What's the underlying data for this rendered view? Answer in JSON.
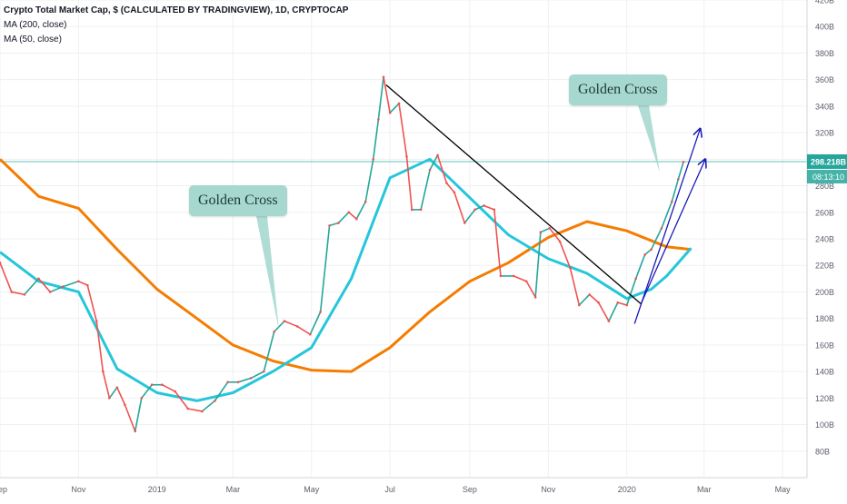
{
  "legend": {
    "title": "Crypto Total Market Cap, $ (CALCULATED BY TRADINGVIEW), 1D, CRYPTOCAP",
    "ma200": "MA (200, close)",
    "ma50": "MA (50, close)"
  },
  "price_badge": {
    "value": "298.218B",
    "countdown": "08:13:10",
    "color": "#26a69a"
  },
  "annotations": {
    "callout_1": "Golden Cross",
    "callout_2": "Golden Cross"
  },
  "colors": {
    "candle_up": "#26a69a",
    "candle_down": "#ef5350",
    "ma200": "#f57c00",
    "ma50": "#26c6da",
    "trendline": "#000000",
    "channel": "#1a1ab8",
    "callout_bg": "#a6d8cf"
  },
  "chart_data": {
    "type": "line",
    "title": "Crypto Total Market Cap, $ (CALCULATED BY TRADINGVIEW), 1D, CRYPTOCAP",
    "ylim": [
      60,
      420
    ],
    "xlim": [
      "2018-09-01",
      "2020-05-20"
    ],
    "y_ticks": [
      "80B",
      "100B",
      "120B",
      "140B",
      "160B",
      "180B",
      "200B",
      "220B",
      "240B",
      "260B",
      "280B",
      "300B",
      "320B",
      "340B",
      "360B",
      "380B",
      "400B",
      "420B"
    ],
    "x_ticks": [
      {
        "date": "2018-09-01",
        "label": "Sep"
      },
      {
        "date": "2018-11-01",
        "label": "Nov"
      },
      {
        "date": "2019-01-01",
        "label": "2019"
      },
      {
        "date": "2019-03-01",
        "label": "Mar"
      },
      {
        "date": "2019-05-01",
        "label": "May"
      },
      {
        "date": "2019-07-01",
        "label": "Jul"
      },
      {
        "date": "2019-09-01",
        "label": "Sep"
      },
      {
        "date": "2019-11-01",
        "label": "Nov"
      },
      {
        "date": "2020-01-01",
        "label": "2020"
      },
      {
        "date": "2020-03-01",
        "label": "Mar"
      },
      {
        "date": "2020-05-01",
        "label": "May"
      }
    ],
    "last_price": 298.2,
    "series": [
      {
        "name": "Crypto Total Market Cap",
        "points": [
          [
            "2018-09-01",
            222
          ],
          [
            "2018-09-10",
            200
          ],
          [
            "2018-09-20",
            198
          ],
          [
            "2018-10-01",
            210
          ],
          [
            "2018-10-10",
            200
          ],
          [
            "2018-10-20",
            204
          ],
          [
            "2018-11-01",
            208
          ],
          [
            "2018-11-08",
            205
          ],
          [
            "2018-11-15",
            178
          ],
          [
            "2018-11-20",
            140
          ],
          [
            "2018-11-25",
            120
          ],
          [
            "2018-12-01",
            128
          ],
          [
            "2018-12-07",
            115
          ],
          [
            "2018-12-15",
            95
          ],
          [
            "2018-12-20",
            120
          ],
          [
            "2018-12-28",
            130
          ],
          [
            "2019-01-05",
            130
          ],
          [
            "2019-01-15",
            125
          ],
          [
            "2019-01-25",
            112
          ],
          [
            "2019-02-05",
            110
          ],
          [
            "2019-02-15",
            118
          ],
          [
            "2019-02-25",
            132
          ],
          [
            "2019-03-05",
            132
          ],
          [
            "2019-03-15",
            135
          ],
          [
            "2019-03-25",
            140
          ],
          [
            "2019-04-02",
            170
          ],
          [
            "2019-04-10",
            178
          ],
          [
            "2019-04-20",
            174
          ],
          [
            "2019-04-30",
            168
          ],
          [
            "2019-05-08",
            185
          ],
          [
            "2019-05-15",
            250
          ],
          [
            "2019-05-22",
            252
          ],
          [
            "2019-05-30",
            260
          ],
          [
            "2019-06-05",
            255
          ],
          [
            "2019-06-12",
            268
          ],
          [
            "2019-06-18",
            300
          ],
          [
            "2019-06-22",
            330
          ],
          [
            "2019-06-26",
            362
          ],
          [
            "2019-07-01",
            335
          ],
          [
            "2019-07-08",
            342
          ],
          [
            "2019-07-14",
            302
          ],
          [
            "2019-07-18",
            262
          ],
          [
            "2019-07-25",
            262
          ],
          [
            "2019-08-01",
            292
          ],
          [
            "2019-08-07",
            303
          ],
          [
            "2019-08-14",
            282
          ],
          [
            "2019-08-20",
            275
          ],
          [
            "2019-08-28",
            252
          ],
          [
            "2019-09-05",
            262
          ],
          [
            "2019-09-12",
            265
          ],
          [
            "2019-09-20",
            262
          ],
          [
            "2019-09-25",
            212
          ],
          [
            "2019-10-05",
            212
          ],
          [
            "2019-10-15",
            208
          ],
          [
            "2019-10-22",
            196
          ],
          [
            "2019-10-26",
            245
          ],
          [
            "2019-11-02",
            248
          ],
          [
            "2019-11-10",
            238
          ],
          [
            "2019-11-18",
            218
          ],
          [
            "2019-11-25",
            190
          ],
          [
            "2019-12-03",
            198
          ],
          [
            "2019-12-10",
            192
          ],
          [
            "2019-12-18",
            178
          ],
          [
            "2019-12-25",
            192
          ],
          [
            "2020-01-01",
            190
          ],
          [
            "2020-01-08",
            210
          ],
          [
            "2020-01-15",
            228
          ],
          [
            "2020-01-20",
            232
          ],
          [
            "2020-01-28",
            248
          ],
          [
            "2020-02-05",
            268
          ],
          [
            "2020-02-10",
            285
          ],
          [
            "2020-02-14",
            298
          ]
        ]
      },
      {
        "name": "MA (200, close)",
        "points": [
          [
            "2018-09-01",
            300
          ],
          [
            "2018-10-01",
            272
          ],
          [
            "2018-11-01",
            263
          ],
          [
            "2018-12-01",
            232
          ],
          [
            "2019-01-01",
            202
          ],
          [
            "2019-02-01",
            180
          ],
          [
            "2019-03-01",
            160
          ],
          [
            "2019-04-01",
            148
          ],
          [
            "2019-05-01",
            141
          ],
          [
            "2019-06-01",
            140
          ],
          [
            "2019-07-01",
            158
          ],
          [
            "2019-08-01",
            185
          ],
          [
            "2019-09-01",
            208
          ],
          [
            "2019-10-01",
            222
          ],
          [
            "2019-11-01",
            241
          ],
          [
            "2019-12-01",
            253
          ],
          [
            "2020-01-01",
            246
          ],
          [
            "2020-02-01",
            234
          ],
          [
            "2020-02-20",
            232
          ]
        ]
      },
      {
        "name": "MA (50, close)",
        "points": [
          [
            "2018-09-01",
            230
          ],
          [
            "2018-10-01",
            208
          ],
          [
            "2018-11-01",
            200
          ],
          [
            "2018-12-01",
            142
          ],
          [
            "2019-01-01",
            124
          ],
          [
            "2019-02-01",
            118
          ],
          [
            "2019-03-01",
            124
          ],
          [
            "2019-04-01",
            140
          ],
          [
            "2019-05-01",
            158
          ],
          [
            "2019-06-01",
            210
          ],
          [
            "2019-07-01",
            286
          ],
          [
            "2019-08-01",
            300
          ],
          [
            "2019-09-01",
            271
          ],
          [
            "2019-10-01",
            243
          ],
          [
            "2019-11-01",
            225
          ],
          [
            "2019-12-01",
            214
          ],
          [
            "2020-01-01",
            195
          ],
          [
            "2020-01-20",
            202
          ],
          [
            "2020-02-01",
            212
          ],
          [
            "2020-02-20",
            233
          ]
        ]
      }
    ],
    "drawings": [
      {
        "kind": "trendline",
        "from": [
          "2019-06-28",
          356
        ],
        "to": [
          "2020-01-12",
          191
        ]
      },
      {
        "kind": "channel-arrow",
        "from": [
          "2020-01-07",
          176
        ],
        "to": [
          "2020-02-27",
          323
        ]
      },
      {
        "kind": "channel-arrow",
        "from": [
          "2020-01-12",
          191
        ],
        "to": [
          "2020-03-02",
          300
        ]
      }
    ]
  }
}
